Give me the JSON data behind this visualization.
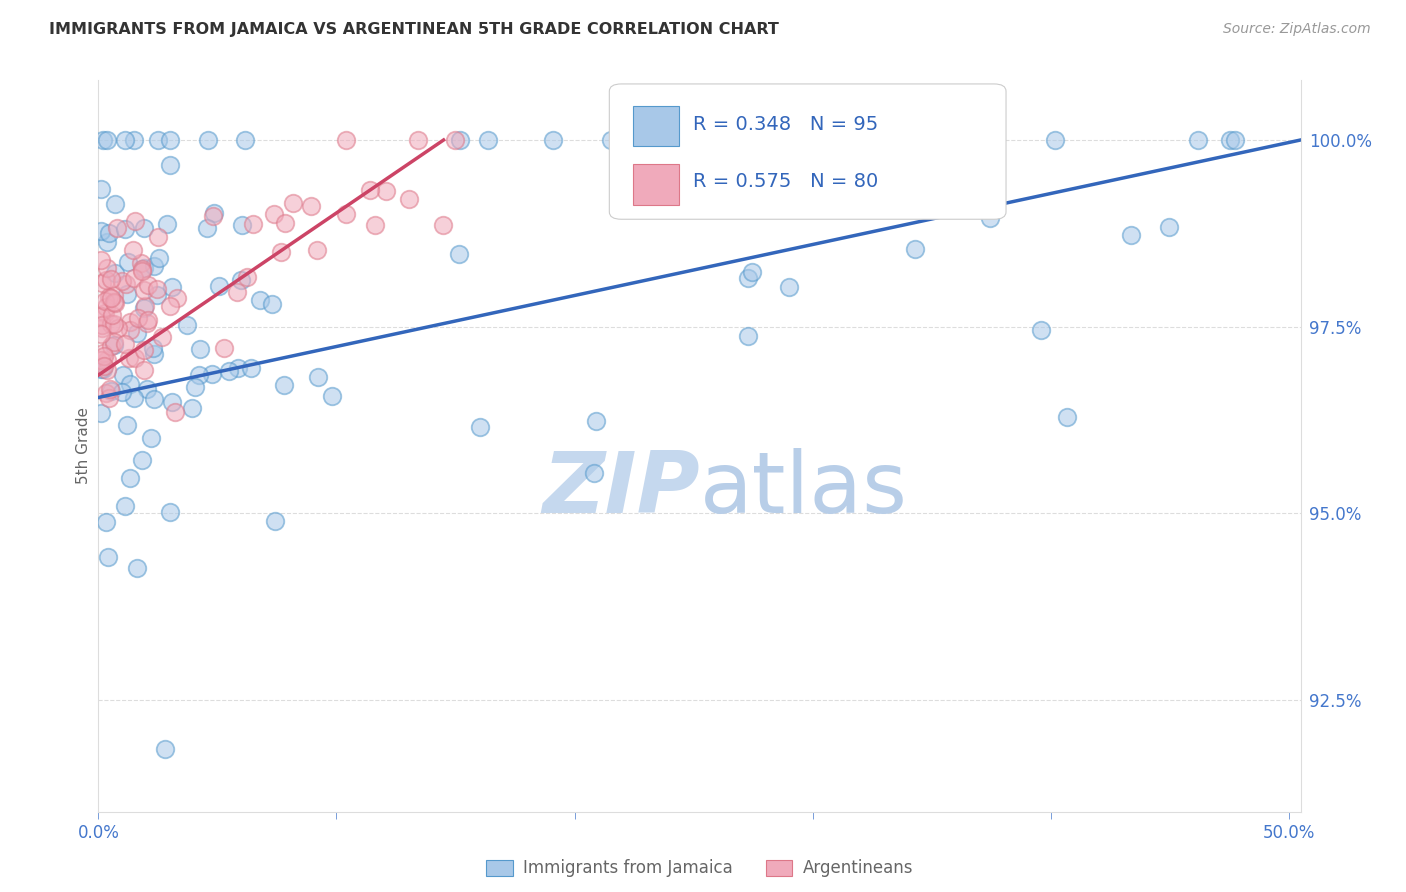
{
  "title": "IMMIGRANTS FROM JAMAICA VS ARGENTINEAN 5TH GRADE CORRELATION CHART",
  "source": "Source: ZipAtlas.com",
  "ylabel": "5th Grade",
  "yticks": [
    92.5,
    95.0,
    97.5,
    100.0
  ],
  "ytick_labels": [
    "92.5%",
    "95.0%",
    "97.5%",
    "100.0%"
  ],
  "xmin": 0.0,
  "xmax": 0.505,
  "ymin": 91.0,
  "ymax": 100.8,
  "legend_R1": "R = 0.348",
  "legend_N1": "N = 95",
  "legend_R2": "R = 0.575",
  "legend_N2": "N = 80",
  "legend_label1": "Immigrants from Jamaica",
  "legend_label2": "Argentineans",
  "color_jam_fill": "#A8C8E8",
  "color_jam_edge": "#5599CC",
  "color_arg_fill": "#F0AABB",
  "color_arg_edge": "#DD7788",
  "color_jam_line": "#3366BB",
  "color_arg_line": "#CC4466",
  "blue_text": "#3366BB",
  "grid_color": "#DDDDDD",
  "title_color": "#333333",
  "source_color": "#999999",
  "ylabel_color": "#666666",
  "tick_color": "#4477CC",
  "watermark_zip_color": "#C5D8EE",
  "watermark_atlas_color": "#B8CEE8",
  "seed": 12345,
  "jam_line_x0": 0.0,
  "jam_line_x1": 0.505,
  "jam_line_y0": 96.55,
  "jam_line_y1": 100.0,
  "arg_line_x0": 0.0,
  "arg_line_x1": 0.145,
  "arg_line_y0": 96.85,
  "arg_line_y1": 100.0
}
